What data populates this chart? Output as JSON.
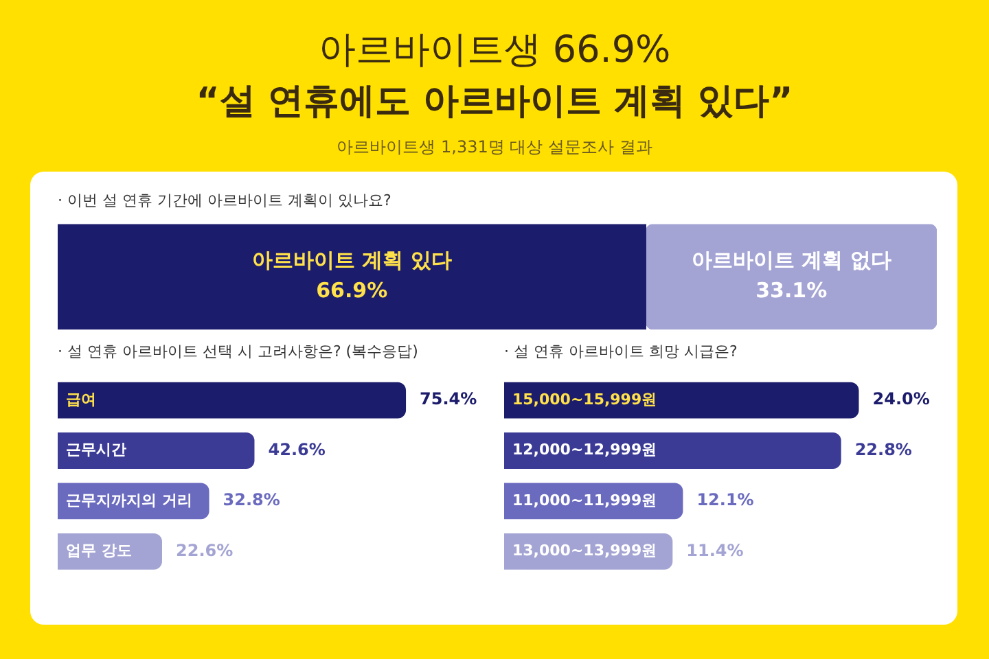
{
  "chart_data": [
    {
      "type": "other",
      "title": "아르바이트생 66.9%",
      "subtitle": "“설 연휴에도 아르바이트 계획 있다”",
      "annotations": [
        "아르바이트생 1,331명 대상 설문조사 결과"
      ]
    },
    {
      "type": "bar",
      "title": "· 이번 설 연휴 기간에 아르바이트 계획이 있나요?",
      "orientation": "horizontal",
      "stacked": true,
      "categories": [
        null
      ],
      "xlim": [
        0,
        100
      ],
      "tick_labels": false,
      "series": [
        {
          "name": "아르바이트 계획 있다",
          "color": "#1c1c6c",
          "values": [
            66.9
          ],
          "value_labels": [
            "66.9%"
          ]
        },
        {
          "name": "아르바이트 계획 없다",
          "color": "#a4a4d4",
          "values": [
            33.1
          ],
          "value_labels": [
            "33.1%"
          ]
        }
      ]
    },
    {
      "type": "bar",
      "title": "· 설 연휴 아르바이트 선택 시 고려사항은? (복수응답)",
      "orientation": "horizontal",
      "tick_labels": "y",
      "categories": [
        "급여",
        "근무시간",
        "근무지까지의 거리",
        "업무 강도"
      ],
      "values": [
        75.4,
        42.6,
        32.8,
        22.6
      ],
      "colors": [
        "#1c1c6c",
        "#3b3b96",
        "#6a6abf",
        "#a4a4d4"
      ],
      "value_labels": [
        "75.4%",
        "42.6%",
        "32.8%",
        "22.6%"
      ]
    },
    {
      "type": "bar",
      "title": "· 설 연휴 아르바이트 희망 시급은?",
      "orientation": "horizontal",
      "tick_labels": "y",
      "categories": [
        "15,000~15,999원",
        "12,000~12,999원",
        "11,000~11,999원",
        "13,000~13,999원"
      ],
      "values": [
        24.0,
        22.8,
        12.1,
        11.4
      ],
      "colors": [
        "#1c1c6c",
        "#3b3b96",
        "#6a6abf",
        "#a4a4d4"
      ],
      "value_labels": [
        "24.0%",
        "22.8%",
        "12.1%",
        "11.4%"
      ]
    }
  ]
}
